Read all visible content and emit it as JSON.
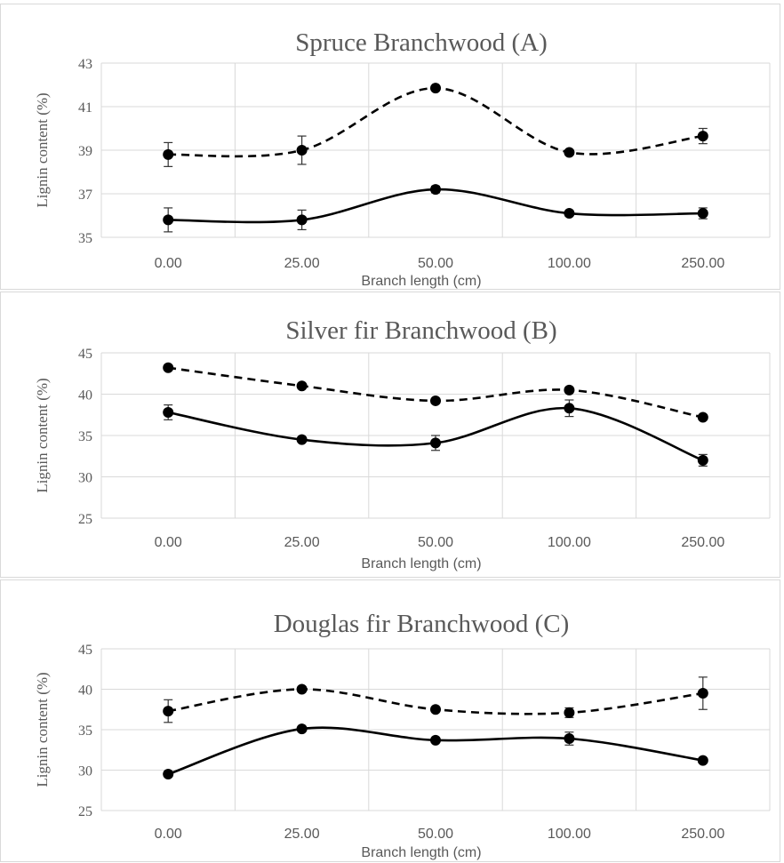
{
  "chart_data": [
    {
      "type": "line",
      "title": "Spruce Branchwood (A)",
      "xlabel": "Branch length (cm)",
      "ylabel": "Lignin content (%)",
      "categories": [
        "0.00",
        "25.00",
        "50.00",
        "100.00",
        "250.00"
      ],
      "ylim": [
        35,
        43
      ],
      "yticks": [
        "35",
        "37",
        "39",
        "41",
        "43"
      ],
      "grid": true,
      "series": [
        {
          "style": "dashed",
          "values": [
            38.8,
            39.0,
            41.85,
            38.9,
            39.65
          ],
          "errors": [
            0.55,
            0.65,
            0.05,
            0.1,
            0.35
          ]
        },
        {
          "style": "solid",
          "values": [
            35.8,
            35.8,
            37.2,
            36.1,
            36.1
          ],
          "errors": [
            0.55,
            0.45,
            0.15,
            0.1,
            0.25
          ]
        }
      ]
    },
    {
      "type": "line",
      "title": "Silver fir Branchwood (B)",
      "xlabel": "Branch length (cm)",
      "ylabel": "Lignin content (%)",
      "categories": [
        "0.00",
        "25.00",
        "50.00",
        "100.00",
        "250.00"
      ],
      "ylim": [
        25,
        45
      ],
      "yticks": [
        "25",
        "30",
        "35",
        "40",
        "45"
      ],
      "grid": true,
      "series": [
        {
          "style": "dashed",
          "values": [
            43.2,
            41.0,
            39.2,
            40.5,
            37.2
          ],
          "errors": [
            0.1,
            0.1,
            0.1,
            0.2,
            0.1
          ]
        },
        {
          "style": "solid",
          "values": [
            37.8,
            34.5,
            34.1,
            38.3,
            32.0
          ],
          "errors": [
            0.9,
            0.1,
            0.9,
            1.0,
            0.7
          ]
        }
      ]
    },
    {
      "type": "line",
      "title": "Douglas fir Branchwood (C)",
      "xlabel": "Branch length (cm)",
      "ylabel": "Lignin content (%)",
      "categories": [
        "0.00",
        "25.00",
        "50.00",
        "100.00",
        "250.00"
      ],
      "ylim": [
        25,
        45
      ],
      "yticks": [
        "25",
        "30",
        "35",
        "40",
        "45"
      ],
      "grid": true,
      "series": [
        {
          "style": "dashed",
          "values": [
            37.3,
            40.0,
            37.5,
            37.1,
            39.5
          ],
          "errors": [
            1.4,
            0.1,
            0.1,
            0.6,
            2.0
          ]
        },
        {
          "style": "solid",
          "values": [
            29.5,
            35.1,
            33.7,
            33.9,
            31.2
          ],
          "errors": [
            0.1,
            0.1,
            0.1,
            0.8,
            0.1
          ]
        }
      ]
    }
  ]
}
